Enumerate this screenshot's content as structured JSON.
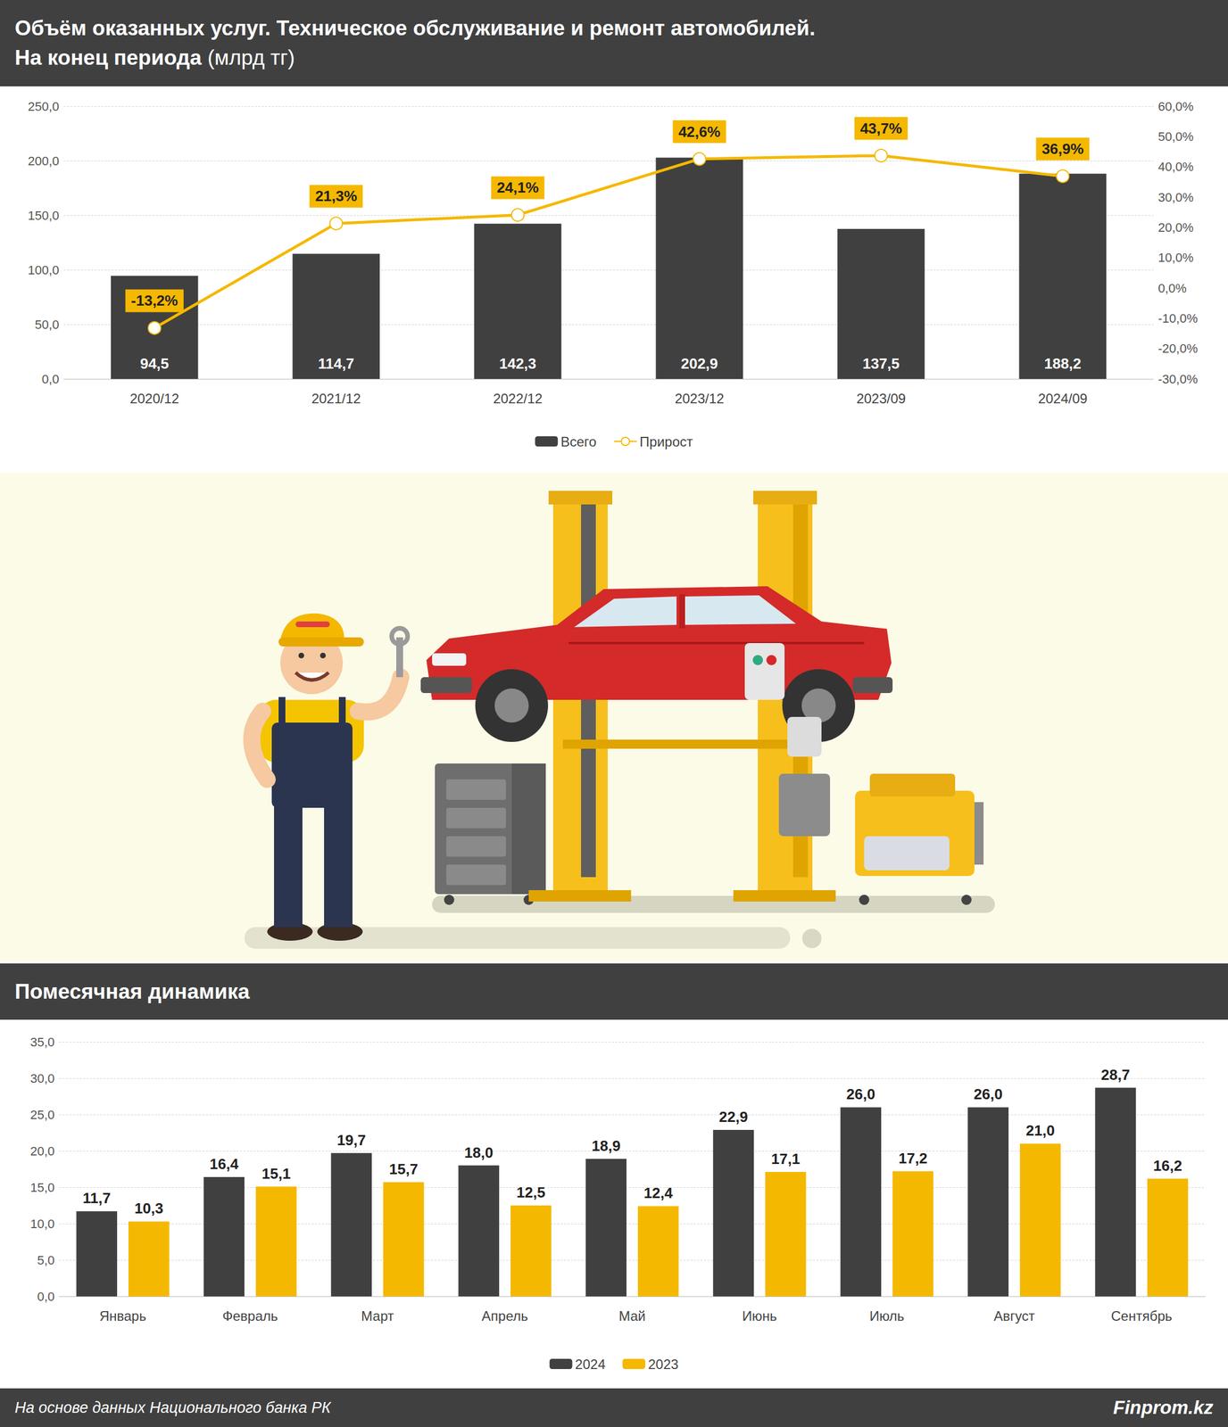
{
  "chart_data": [
    {
      "type": "bar",
      "title": "Объём оказанных услуг. Техническое обслуживание и ремонт автомобилей.",
      "subtitle": "На конец периода",
      "units": "(млрд тг)",
      "categories": [
        "2020/12",
        "2021/12",
        "2022/12",
        "2023/12",
        "2023/09",
        "2024/09"
      ],
      "series": [
        {
          "name": "Всего",
          "type": "bar",
          "color": "#404040",
          "values": [
            94.5,
            114.7,
            142.3,
            202.9,
            137.5,
            188.2
          ],
          "value_labels": [
            "94,5",
            "114,7",
            "142,3",
            "202,9",
            "137,5",
            "188,2"
          ]
        },
        {
          "name": "Прирост",
          "type": "line",
          "axis": "y2",
          "color": "#f5b800",
          "marker": "circle",
          "values": [
            -13.2,
            21.3,
            24.1,
            42.6,
            43.7,
            36.9
          ],
          "value_labels": [
            "-13,2%",
            "21,3%",
            "24,1%",
            "42,6%",
            "43,7%",
            "36,9%"
          ]
        }
      ],
      "ylim": [
        0,
        250
      ],
      "yticks": [
        {
          "value": 0,
          "label": "0,0"
        },
        {
          "value": 50,
          "label": "50,0"
        },
        {
          "value": 100,
          "label": "100,0"
        },
        {
          "value": 150,
          "label": "150,0"
        },
        {
          "value": 200,
          "label": "200,0"
        },
        {
          "value": 250,
          "label": "250,0"
        }
      ],
      "y2lim": [
        -30,
        60
      ],
      "y2ticks": [
        {
          "value": -30,
          "label": "-30,0%"
        },
        {
          "value": -20,
          "label": "-20,0%"
        },
        {
          "value": -10,
          "label": "-10,0%"
        },
        {
          "value": 0,
          "label": "0,0%"
        },
        {
          "value": 10,
          "label": "10,0%"
        },
        {
          "value": 20,
          "label": "20,0%"
        },
        {
          "value": 30,
          "label": "30,0%"
        },
        {
          "value": 40,
          "label": "40,0%"
        },
        {
          "value": 50,
          "label": "50,0%"
        },
        {
          "value": 60,
          "label": "60,0%"
        }
      ],
      "grid": true,
      "legend": "bottom",
      "data_labels": true
    },
    {
      "type": "bar",
      "title": "Помесячная динамика",
      "categories": [
        "Январь",
        "Февраль",
        "Март",
        "Апрель",
        "Май",
        "Июнь",
        "Июль",
        "Август",
        "Сентябрь"
      ],
      "series": [
        {
          "name": "2024",
          "color": "#404040",
          "values": [
            11.7,
            16.4,
            19.7,
            18.0,
            18.9,
            22.9,
            26.0,
            26.0,
            28.7
          ],
          "value_labels": [
            "11,7",
            "16,4",
            "19,7",
            "18,0",
            "18,9",
            "22,9",
            "26,0",
            "26,0",
            "28,7"
          ]
        },
        {
          "name": "2023",
          "color": "#f5b800",
          "values": [
            10.3,
            15.1,
            15.7,
            12.5,
            12.4,
            17.1,
            17.2,
            21.0,
            16.2
          ],
          "value_labels": [
            "10,3",
            "15,1",
            "15,7",
            "12,5",
            "12,4",
            "17,1",
            "17,2",
            "21,0",
            "16,2"
          ]
        }
      ],
      "ylim": [
        0,
        35
      ],
      "yticks": [
        {
          "value": 0,
          "label": "0,0"
        },
        {
          "value": 5,
          "label": "5,0"
        },
        {
          "value": 10,
          "label": "10,0"
        },
        {
          "value": 15,
          "label": "15,0"
        },
        {
          "value": 20,
          "label": "20,0"
        },
        {
          "value": 25,
          "label": "25,0"
        },
        {
          "value": 30,
          "label": "30,0"
        },
        {
          "value": 35,
          "label": "35,0"
        }
      ],
      "grid": true,
      "legend": "bottom",
      "data_labels": true
    }
  ],
  "footer": {
    "source": "На основе данных Национального банка РК",
    "brand": "Finprom.kz"
  }
}
